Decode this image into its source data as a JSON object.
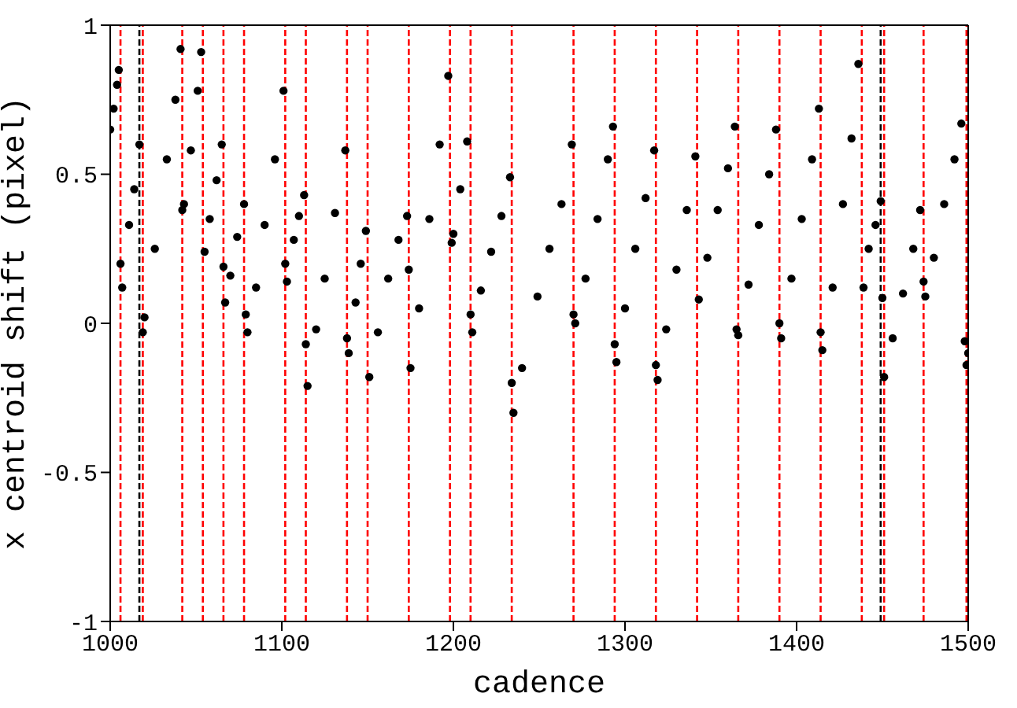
{
  "chart_data": {
    "type": "scatter",
    "xlabel": "cadence",
    "ylabel": "x centroid shift (pixel)",
    "xlim": [
      1000,
      1500
    ],
    "xticks": [
      1000,
      1100,
      1200,
      1300,
      1400,
      1500
    ],
    "ylim": [
      -1,
      1
    ],
    "yticks": [
      -1,
      -0.5,
      0,
      0.5,
      1
    ],
    "marker": "circle",
    "series": [
      {
        "color": "#000000",
        "x": [
          1000,
          1002,
          1004,
          1005,
          1006,
          1007,
          1011,
          1014,
          1017,
          1019,
          1020,
          1026,
          1033,
          1038,
          1041,
          1042,
          1043,
          1047,
          1051,
          1053,
          1055,
          1058,
          1062,
          1065,
          1066,
          1067,
          1070,
          1074,
          1078,
          1079,
          1080,
          1085,
          1090,
          1096,
          1101,
          1102,
          1103,
          1107,
          1110,
          1113,
          1114,
          1115,
          1120,
          1125,
          1131,
          1137,
          1138,
          1139,
          1143,
          1146,
          1149,
          1151,
          1156,
          1162,
          1168,
          1173,
          1174,
          1175,
          1180,
          1186,
          1192,
          1197,
          1199,
          1200,
          1204,
          1208,
          1210,
          1211,
          1216,
          1222,
          1228,
          1233,
          1234,
          1235,
          1240,
          1249,
          1256,
          1263,
          1269,
          1270,
          1271,
          1277,
          1284,
          1290,
          1293,
          1294,
          1295,
          1300,
          1306,
          1312,
          1317,
          1318,
          1319,
          1324,
          1330,
          1336,
          1341,
          1343,
          1348,
          1354,
          1360,
          1364,
          1365,
          1366,
          1372,
          1378,
          1384,
          1388,
          1390,
          1391,
          1397,
          1403,
          1409,
          1413,
          1414,
          1415,
          1421,
          1427,
          1432,
          1436,
          1439,
          1442,
          1446,
          1449,
          1450,
          1451,
          1456,
          1462,
          1468,
          1472,
          1474,
          1475,
          1480,
          1486,
          1492,
          1496,
          1498,
          1499,
          1500
        ],
        "values": [
          0.65,
          0.72,
          0.8,
          0.85,
          0.2,
          0.12,
          0.33,
          0.45,
          0.6,
          -0.03,
          0.02,
          0.25,
          0.55,
          0.75,
          0.92,
          0.38,
          0.4,
          0.58,
          0.78,
          0.91,
          0.24,
          0.35,
          0.48,
          0.6,
          0.19,
          0.07,
          0.16,
          0.29,
          0.4,
          0.03,
          -0.03,
          0.12,
          0.33,
          0.55,
          0.78,
          0.2,
          0.14,
          0.28,
          0.36,
          0.43,
          -0.07,
          -0.21,
          -0.02,
          0.15,
          0.37,
          0.58,
          -0.05,
          -0.1,
          0.07,
          0.2,
          0.31,
          -0.18,
          -0.03,
          0.15,
          0.28,
          0.36,
          0.18,
          -0.15,
          0.05,
          0.35,
          0.6,
          0.83,
          0.27,
          0.3,
          0.45,
          0.61,
          0.03,
          -0.03,
          0.11,
          0.24,
          0.36,
          0.49,
          -0.2,
          -0.3,
          -0.15,
          0.09,
          0.25,
          0.4,
          0.6,
          0.03,
          0,
          0.15,
          0.35,
          0.55,
          0.66,
          -0.07,
          -0.13,
          0.05,
          0.25,
          0.42,
          0.58,
          -0.14,
          -0.19,
          -0.02,
          0.18,
          0.38,
          0.56,
          0.08,
          0.22,
          0.38,
          0.52,
          0.66,
          -0.02,
          -0.04,
          0.13,
          0.33,
          0.5,
          0.65,
          0,
          -0.05,
          0.15,
          0.35,
          0.55,
          0.72,
          -0.03,
          -0.09,
          0.12,
          0.4,
          0.62,
          0.87,
          0.12,
          0.25,
          0.33,
          0.41,
          0.085,
          -0.18,
          -0.05,
          0.1,
          0.25,
          0.38,
          0.14,
          0.09,
          0.22,
          0.4,
          0.55,
          0.67,
          -0.06,
          -0.14,
          -0.1
        ]
      }
    ],
    "ref_lines": [
      {
        "axis": "x",
        "value": 1006,
        "color": "#ff0000",
        "line_style": "dashed"
      },
      {
        "axis": "x",
        "value": 1017,
        "color": "#000000",
        "line_style": "dashed"
      },
      {
        "axis": "x",
        "value": 1019,
        "color": "#ff0000",
        "line_style": "dashed"
      },
      {
        "axis": "x",
        "value": 1042,
        "color": "#ff0000",
        "line_style": "dashed"
      },
      {
        "axis": "x",
        "value": 1054,
        "color": "#ff0000",
        "line_style": "dashed"
      },
      {
        "axis": "x",
        "value": 1066,
        "color": "#ff0000",
        "line_style": "dashed"
      },
      {
        "axis": "x",
        "value": 1078,
        "color": "#ff0000",
        "line_style": "dashed"
      },
      {
        "axis": "x",
        "value": 1102,
        "color": "#ff0000",
        "line_style": "dashed"
      },
      {
        "axis": "x",
        "value": 1114,
        "color": "#ff0000",
        "line_style": "dashed"
      },
      {
        "axis": "x",
        "value": 1138,
        "color": "#ff0000",
        "line_style": "dashed"
      },
      {
        "axis": "x",
        "value": 1150,
        "color": "#ff0000",
        "line_style": "dashed"
      },
      {
        "axis": "x",
        "value": 1174,
        "color": "#ff0000",
        "line_style": "dashed"
      },
      {
        "axis": "x",
        "value": 1198,
        "color": "#ff0000",
        "line_style": "dashed"
      },
      {
        "axis": "x",
        "value": 1210,
        "color": "#ff0000",
        "line_style": "dashed"
      },
      {
        "axis": "x",
        "value": 1234,
        "color": "#ff0000",
        "line_style": "dashed"
      },
      {
        "axis": "x",
        "value": 1270,
        "color": "#ff0000",
        "line_style": "dashed"
      },
      {
        "axis": "x",
        "value": 1294,
        "color": "#ff0000",
        "line_style": "dashed"
      },
      {
        "axis": "x",
        "value": 1318,
        "color": "#ff0000",
        "line_style": "dashed"
      },
      {
        "axis": "x",
        "value": 1342,
        "color": "#ff0000",
        "line_style": "dashed"
      },
      {
        "axis": "x",
        "value": 1366,
        "color": "#ff0000",
        "line_style": "dashed"
      },
      {
        "axis": "x",
        "value": 1390,
        "color": "#ff0000",
        "line_style": "dashed"
      },
      {
        "axis": "x",
        "value": 1414,
        "color": "#ff0000",
        "line_style": "dashed"
      },
      {
        "axis": "x",
        "value": 1438,
        "color": "#ff0000",
        "line_style": "dashed"
      },
      {
        "axis": "x",
        "value": 1449,
        "color": "#000000",
        "line_style": "dashed"
      },
      {
        "axis": "x",
        "value": 1451,
        "color": "#ff0000",
        "line_style": "dashed"
      },
      {
        "axis": "x",
        "value": 1474,
        "color": "#ff0000",
        "line_style": "dashed"
      },
      {
        "axis": "x",
        "value": 1499,
        "color": "#ff0000",
        "line_style": "dashed"
      }
    ]
  }
}
